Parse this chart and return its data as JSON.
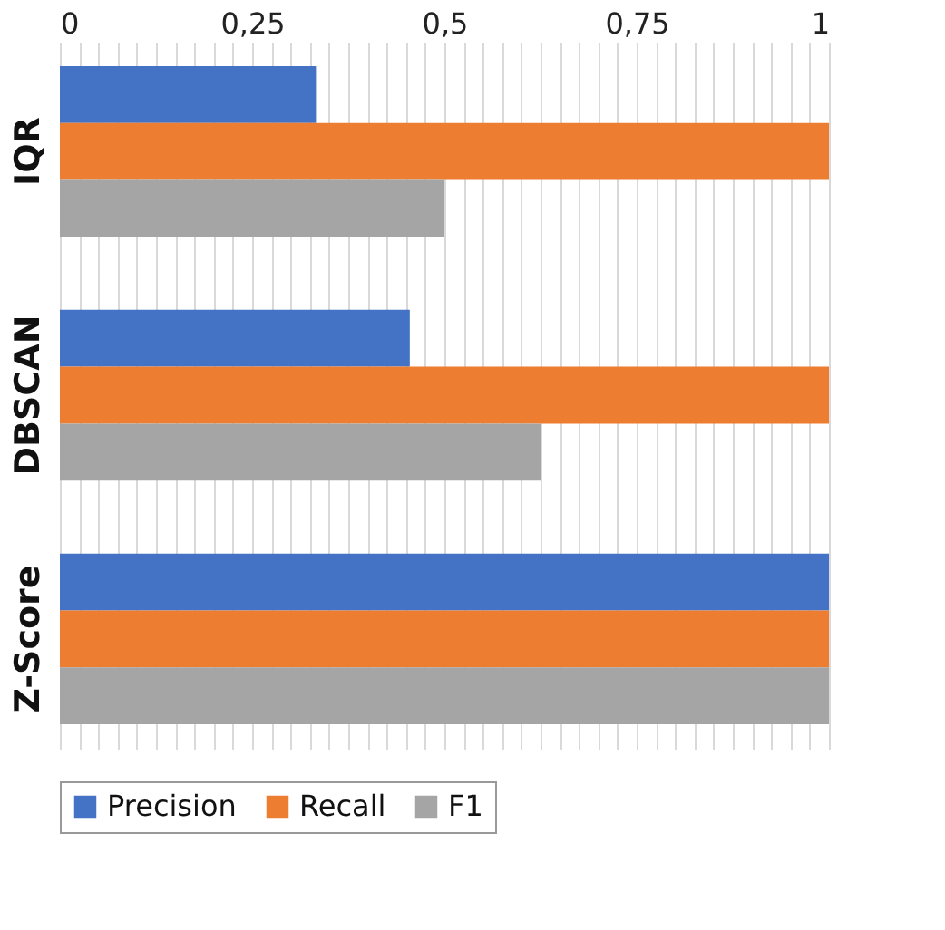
{
  "chart_data": {
    "type": "bar",
    "orientation": "horizontal",
    "categories": [
      "IQR",
      "DBSCAN",
      "Z-Score"
    ],
    "series": [
      {
        "name": "Precision",
        "color": "#4472c4",
        "values": [
          0.333,
          0.455,
          1
        ]
      },
      {
        "name": "Recall",
        "color": "#ed7d31",
        "values": [
          1,
          1,
          1
        ]
      },
      {
        "name": "F1",
        "color": "#a5a5a5",
        "values": [
          0.5,
          0.625,
          1
        ]
      }
    ],
    "xlim": [
      0,
      1
    ],
    "xticks": [
      0,
      {
        "value": 0.025,
        "label": null
      },
      {
        "value": 0.05,
        "label": null
      },
      {
        "value": 0.075,
        "label": null
      },
      {
        "value": 0.1,
        "label": null
      },
      {
        "value": 0.125,
        "label": null
      },
      {
        "value": 0.15,
        "label": null
      },
      {
        "value": 0.175,
        "label": null
      },
      {
        "value": 0.2,
        "label": null
      },
      {
        "value": 0.225,
        "label": null
      },
      {
        "value": 0.25,
        "label": "0,25"
      },
      {
        "value": 0.275,
        "label": null
      },
      {
        "value": 0.3,
        "label": null
      },
      {
        "value": 0.325,
        "label": null
      },
      {
        "value": 0.35,
        "label": null
      },
      {
        "value": 0.375,
        "label": null
      },
      {
        "value": 0.4,
        "label": null
      },
      {
        "value": 0.425,
        "label": null
      },
      {
        "value": 0.45,
        "label": null
      },
      {
        "value": 0.475,
        "label": null
      },
      {
        "value": 0.5,
        "label": "0,5"
      },
      {
        "value": 0.525,
        "label": null
      },
      {
        "value": 0.55,
        "label": null
      },
      {
        "value": 0.575,
        "label": null
      },
      {
        "value": 0.6,
        "label": null
      },
      {
        "value": 0.625,
        "label": null
      },
      {
        "value": 0.65,
        "label": null
      },
      {
        "value": 0.675,
        "label": null
      },
      {
        "value": 0.7,
        "label": null
      },
      {
        "value": 0.725,
        "label": null
      },
      {
        "value": 0.75,
        "label": "0,75"
      },
      {
        "value": 0.775,
        "label": null
      },
      {
        "value": 0.8,
        "label": null
      },
      {
        "value": 0.825,
        "label": null
      },
      {
        "value": 0.85,
        "label": null
      },
      {
        "value": 0.875,
        "label": null
      },
      {
        "value": 0.9,
        "label": null
      },
      {
        "value": 0.925,
        "label": null
      },
      {
        "value": 0.95,
        "label": null
      },
      {
        "value": 0.975,
        "label": null
      },
      1
    ],
    "grid": "x",
    "legend": "bottom"
  }
}
